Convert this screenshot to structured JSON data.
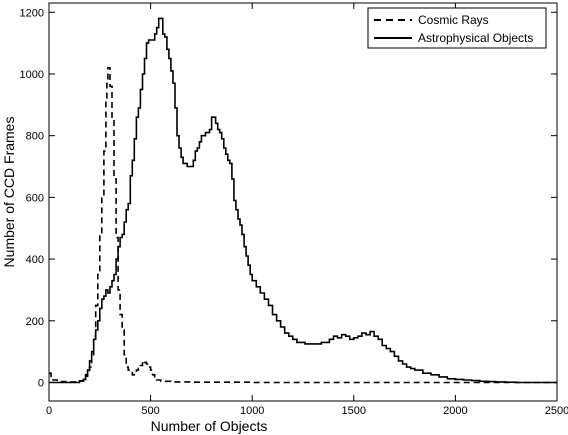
{
  "chart_data": {
    "type": "line",
    "title": "",
    "xlabel": "Number of Objects",
    "ylabel": "Number of CCD Frames",
    "xlim": [
      0,
      2500
    ],
    "ylim": [
      -60,
      1230
    ],
    "x_ticks": [
      0,
      500,
      1000,
      1500,
      2000,
      2500
    ],
    "y_ticks": [
      0,
      200,
      400,
      600,
      800,
      1000,
      1200
    ],
    "legend": {
      "position": "top-right"
    },
    "grid": false,
    "series": [
      {
        "name": "Cosmic Rays",
        "style": "dashed-step",
        "color": "#000000",
        "points": [
          [
            0,
            30
          ],
          [
            10,
            20
          ],
          [
            20,
            8
          ],
          [
            40,
            3
          ],
          [
            100,
            2
          ],
          [
            150,
            5
          ],
          [
            170,
            10
          ],
          [
            180,
            20
          ],
          [
            190,
            30
          ],
          [
            200,
            50
          ],
          [
            210,
            90
          ],
          [
            220,
            150
          ],
          [
            230,
            250
          ],
          [
            240,
            350
          ],
          [
            250,
            480
          ],
          [
            260,
            600
          ],
          [
            270,
            750
          ],
          [
            280,
            920
          ],
          [
            285,
            980
          ],
          [
            290,
            1020
          ],
          [
            300,
            960
          ],
          [
            310,
            860
          ],
          [
            320,
            660
          ],
          [
            330,
            470
          ],
          [
            340,
            300
          ],
          [
            350,
            220
          ],
          [
            360,
            170
          ],
          [
            370,
            90
          ],
          [
            380,
            50
          ],
          [
            390,
            40
          ],
          [
            400,
            35
          ],
          [
            410,
            25
          ],
          [
            420,
            30
          ],
          [
            430,
            40
          ],
          [
            440,
            45
          ],
          [
            450,
            55
          ],
          [
            460,
            70
          ],
          [
            470,
            65
          ],
          [
            480,
            60
          ],
          [
            490,
            50
          ],
          [
            500,
            40
          ],
          [
            510,
            25
          ],
          [
            520,
            15
          ],
          [
            530,
            8
          ],
          [
            550,
            4
          ],
          [
            600,
            2
          ],
          [
            700,
            1
          ],
          [
            1000,
            0
          ],
          [
            1500,
            0
          ],
          [
            2000,
            0
          ],
          [
            2500,
            0
          ]
        ]
      },
      {
        "name": "Astrophysical Objects",
        "style": "solid-step",
        "color": "#000000",
        "points": [
          [
            0,
            0
          ],
          [
            100,
            0
          ],
          [
            150,
            5
          ],
          [
            170,
            10
          ],
          [
            180,
            25
          ],
          [
            190,
            40
          ],
          [
            200,
            70
          ],
          [
            210,
            100
          ],
          [
            220,
            140
          ],
          [
            230,
            170
          ],
          [
            240,
            200
          ],
          [
            250,
            240
          ],
          [
            260,
            270
          ],
          [
            270,
            280
          ],
          [
            280,
            300
          ],
          [
            290,
            290
          ],
          [
            300,
            310
          ],
          [
            310,
            330
          ],
          [
            320,
            350
          ],
          [
            330,
            400
          ],
          [
            340,
            440
          ],
          [
            350,
            470
          ],
          [
            360,
            480
          ],
          [
            370,
            520
          ],
          [
            380,
            560
          ],
          [
            390,
            580
          ],
          [
            400,
            670
          ],
          [
            410,
            720
          ],
          [
            420,
            790
          ],
          [
            430,
            860
          ],
          [
            440,
            890
          ],
          [
            450,
            950
          ],
          [
            460,
            1000
          ],
          [
            470,
            1050
          ],
          [
            480,
            1100
          ],
          [
            490,
            1110
          ],
          [
            500,
            1110
          ],
          [
            510,
            1110
          ],
          [
            520,
            1130
          ],
          [
            530,
            1150
          ],
          [
            540,
            1180
          ],
          [
            550,
            1180
          ],
          [
            560,
            1130
          ],
          [
            570,
            1120
          ],
          [
            580,
            1080
          ],
          [
            590,
            1050
          ],
          [
            600,
            1010
          ],
          [
            610,
            970
          ],
          [
            620,
            890
          ],
          [
            630,
            800
          ],
          [
            640,
            760
          ],
          [
            650,
            730
          ],
          [
            660,
            710
          ],
          [
            670,
            710
          ],
          [
            680,
            700
          ],
          [
            690,
            700
          ],
          [
            700,
            700
          ],
          [
            710,
            720
          ],
          [
            720,
            750
          ],
          [
            730,
            760
          ],
          [
            740,
            780
          ],
          [
            750,
            800
          ],
          [
            760,
            800
          ],
          [
            770,
            810
          ],
          [
            780,
            810
          ],
          [
            790,
            820
          ],
          [
            800,
            860
          ],
          [
            810,
            860
          ],
          [
            820,
            840
          ],
          [
            830,
            820
          ],
          [
            840,
            810
          ],
          [
            850,
            790
          ],
          [
            860,
            760
          ],
          [
            870,
            740
          ],
          [
            880,
            720
          ],
          [
            890,
            710
          ],
          [
            900,
            660
          ],
          [
            910,
            590
          ],
          [
            920,
            560
          ],
          [
            930,
            530
          ],
          [
            940,
            510
          ],
          [
            950,
            480
          ],
          [
            960,
            440
          ],
          [
            970,
            410
          ],
          [
            980,
            380
          ],
          [
            990,
            350
          ],
          [
            1000,
            330
          ],
          [
            1020,
            310
          ],
          [
            1040,
            290
          ],
          [
            1060,
            270
          ],
          [
            1080,
            250
          ],
          [
            1100,
            220
          ],
          [
            1120,
            200
          ],
          [
            1140,
            180
          ],
          [
            1160,
            160
          ],
          [
            1180,
            150
          ],
          [
            1200,
            140
          ],
          [
            1220,
            130
          ],
          [
            1260,
            125
          ],
          [
            1300,
            125
          ],
          [
            1340,
            130
          ],
          [
            1360,
            130
          ],
          [
            1380,
            140
          ],
          [
            1400,
            150
          ],
          [
            1420,
            145
          ],
          [
            1440,
            155
          ],
          [
            1460,
            150
          ],
          [
            1480,
            140
          ],
          [
            1500,
            145
          ],
          [
            1520,
            150
          ],
          [
            1540,
            160
          ],
          [
            1560,
            155
          ],
          [
            1580,
            165
          ],
          [
            1600,
            150
          ],
          [
            1620,
            140
          ],
          [
            1640,
            120
          ],
          [
            1660,
            110
          ],
          [
            1680,
            100
          ],
          [
            1700,
            85
          ],
          [
            1720,
            70
          ],
          [
            1740,
            60
          ],
          [
            1760,
            50
          ],
          [
            1780,
            45
          ],
          [
            1800,
            40
          ],
          [
            1840,
            30
          ],
          [
            1880,
            25
          ],
          [
            1920,
            18
          ],
          [
            1960,
            12
          ],
          [
            2000,
            10
          ],
          [
            2040,
            8
          ],
          [
            2080,
            6
          ],
          [
            2120,
            4
          ],
          [
            2160,
            3
          ],
          [
            2200,
            2
          ],
          [
            2250,
            1
          ],
          [
            2300,
            0
          ],
          [
            2500,
            0
          ]
        ]
      }
    ]
  }
}
